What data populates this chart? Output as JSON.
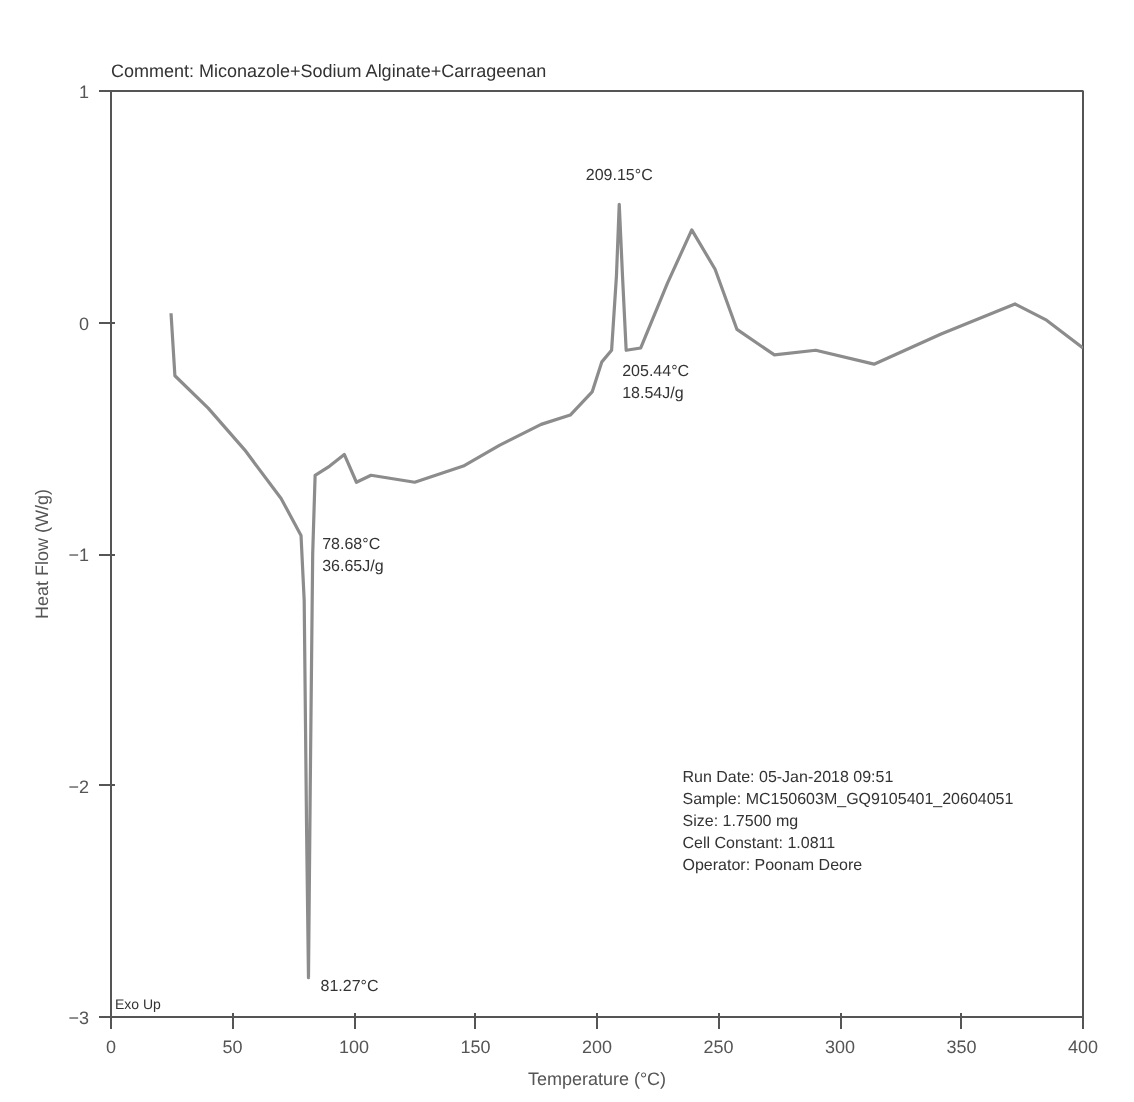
{
  "chart_data": {
    "type": "line",
    "title": "Comment: Miconazole+Sodium Alginate+Carrageenan",
    "xlabel": "Temperature (°C)",
    "ylabel": "Heat Flow (W/g)",
    "x": [
      24.7,
      26.3,
      40,
      55,
      70,
      78.2,
      79.5,
      80.5,
      81.27,
      82,
      83,
      84,
      90,
      96,
      101,
      107,
      125,
      145,
      160,
      177,
      189,
      198,
      202,
      206,
      208,
      209.15,
      210.5,
      212,
      218,
      229,
      239,
      248.6,
      257.6,
      273,
      290,
      314,
      341.6,
      372,
      385,
      400
    ],
    "series": [
      {
        "color": "#8c8c8c",
        "values": [
          0.04,
          -0.23,
          -0.37,
          -0.55,
          -0.76,
          -0.92,
          -1.2,
          -2.2,
          -2.83,
          -2.0,
          -1.0,
          -0.66,
          -0.62,
          -0.57,
          -0.69,
          -0.66,
          -0.69,
          -0.62,
          -0.53,
          -0.44,
          -0.4,
          -0.3,
          -0.17,
          -0.12,
          0.2,
          0.51,
          0.2,
          -0.12,
          -0.11,
          0.17,
          0.4,
          0.23,
          -0.03,
          -0.14,
          -0.12,
          -0.18,
          -0.05,
          0.08,
          0.01,
          -0.11
        ]
      }
    ],
    "xlim": [
      0,
      400
    ],
    "ylim": [
      -3,
      1
    ],
    "xticks": [
      0,
      50,
      100,
      150,
      200,
      250,
      300,
      350,
      400
    ],
    "yticks": [
      -3,
      -2,
      -1,
      0,
      1
    ],
    "grid": false,
    "line_style": "solid",
    "annotations": [
      {
        "text": "78.68°C\n36.65J/g",
        "x": 78.68,
        "y": -0.92
      },
      {
        "text": "209.15°C",
        "x": 209.15,
        "y": 0.51
      },
      {
        "text": "205.44°C\n18.54J/g",
        "x": 205.44,
        "y": -0.12
      },
      {
        "text": "81.27°C",
        "x": 81.27,
        "y": -2.83
      },
      "Run Date:  05-Jan-2018  09:51",
      "Sample:  MC150603M_GQ9105401_20604051",
      "Size:  1.7500  mg",
      "Cell Constant:  1.0811",
      "Operator:  Poonam Deore",
      "Exo Up"
    ]
  }
}
